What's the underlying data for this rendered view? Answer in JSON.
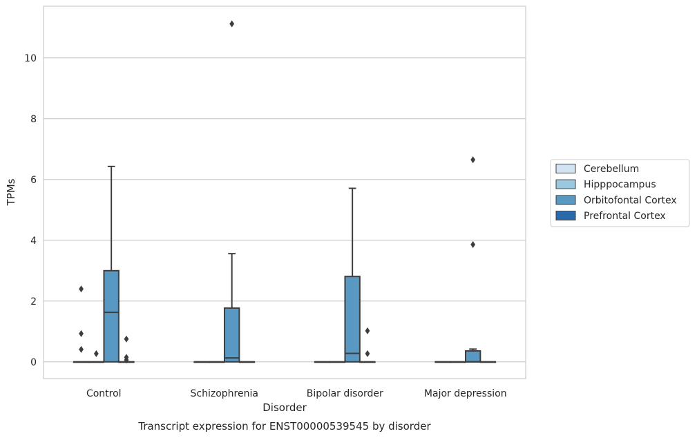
{
  "chart_data": {
    "type": "box",
    "title": "Transcript expression for ENST00000539545 by disorder",
    "xlabel": "Disorder",
    "ylabel": "TPMs",
    "ylim": [
      -0.55,
      11.7
    ],
    "yticks": [
      0,
      2,
      4,
      6,
      8,
      10
    ],
    "grid": true,
    "legend_position": "right",
    "categories": [
      "Control",
      "Schizophrenia",
      "Bipolar disorder",
      "Major depression"
    ],
    "series": [
      {
        "name": "Cerebellum",
        "color": "#d2e3f3",
        "boxes": [
          {
            "q1": 0,
            "median": 0,
            "q3": 0,
            "whisker_low": 0,
            "whisker_high": 0,
            "outliers": [
              2.4,
              0.93,
              0.41
            ]
          },
          {
            "q1": 0,
            "median": 0,
            "q3": 0,
            "whisker_low": 0,
            "whisker_high": 0,
            "outliers": []
          },
          {
            "q1": 0,
            "median": 0,
            "q3": 0,
            "whisker_low": 0,
            "whisker_high": 0,
            "outliers": []
          },
          {
            "q1": 0,
            "median": 0,
            "q3": 0,
            "whisker_low": 0,
            "whisker_high": 0,
            "outliers": []
          }
        ]
      },
      {
        "name": "Hipppocampus",
        "color": "#9ac8e0",
        "boxes": [
          {
            "q1": 0,
            "median": 0,
            "q3": 0,
            "whisker_low": 0,
            "whisker_high": 0,
            "outliers": [
              0.27
            ]
          },
          {
            "q1": 0,
            "median": 0,
            "q3": 0,
            "whisker_low": 0,
            "whisker_high": 0,
            "outliers": []
          },
          {
            "q1": 0,
            "median": 0,
            "q3": 0,
            "whisker_low": 0,
            "whisker_high": 0,
            "outliers": []
          },
          {
            "q1": 0,
            "median": 0,
            "q3": 0,
            "whisker_low": 0,
            "whisker_high": 0,
            "outliers": []
          }
        ]
      },
      {
        "name": "Orbitofontal Cortex",
        "color": "#5a98c4",
        "boxes": [
          {
            "q1": 0,
            "median": 1.63,
            "q3": 3.0,
            "whisker_low": 0,
            "whisker_high": 6.43,
            "outliers": []
          },
          {
            "q1": 0,
            "median": 0.13,
            "q3": 1.77,
            "whisker_low": 0,
            "whisker_high": 3.56,
            "outliers": [
              11.12
            ]
          },
          {
            "q1": 0,
            "median": 0.28,
            "q3": 2.81,
            "whisker_low": 0,
            "whisker_high": 5.71,
            "outliers": []
          },
          {
            "q1": 0,
            "median": 0,
            "q3": 0.36,
            "whisker_low": 0,
            "whisker_high": 0.42,
            "outliers": [
              6.65,
              3.86
            ]
          }
        ]
      },
      {
        "name": "Prefrontal Cortex",
        "color": "#2a6aab",
        "boxes": [
          {
            "q1": 0,
            "median": 0,
            "q3": 0,
            "whisker_low": 0,
            "whisker_high": 0,
            "outliers": [
              0.75,
              0.15,
              0.06
            ]
          },
          {
            "q1": 0,
            "median": 0,
            "q3": 0,
            "whisker_low": 0,
            "whisker_high": 0,
            "outliers": []
          },
          {
            "q1": 0,
            "median": 0,
            "q3": 0,
            "whisker_low": 0,
            "whisker_high": 0,
            "outliers": [
              1.02,
              0.27
            ]
          },
          {
            "q1": 0,
            "median": 0,
            "q3": 0,
            "whisker_low": 0,
            "whisker_high": 0,
            "outliers": []
          }
        ]
      }
    ]
  }
}
